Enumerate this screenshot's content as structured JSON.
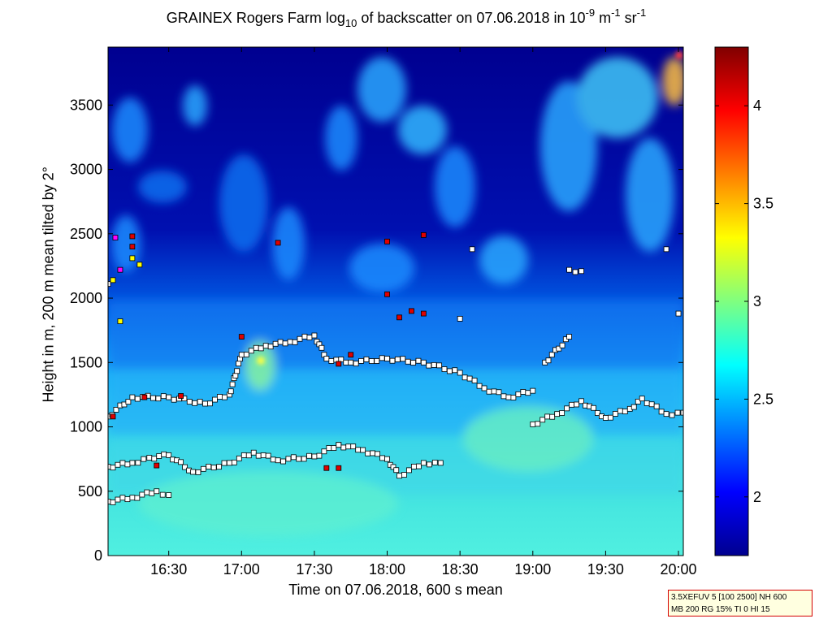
{
  "figure": {
    "title_pre": "GRAINEX Rogers Farm log",
    "title_sub": "10",
    "title_mid": " of backscatter on 07.06.2018 in 10",
    "title_sup1": "-9",
    "title_m": " m",
    "title_sup2": "-1",
    "title_sr": " sr",
    "title_sup3": "-1",
    "info_line1": "3.5XEFUV 5 [100 2500] NH 600",
    "info_line2": "MB 200 RG 15% TI 0 HI 15"
  },
  "chart_data": {
    "type": "heatmap",
    "xlabel": "Time on 07.06.2018, 600 s mean",
    "ylabel": "Height in m, 200 m mean tilted by 2°",
    "xlim": [
      "16:05",
      "20:02"
    ],
    "ylim": [
      0,
      3950
    ],
    "x_ticks": [
      "16:30",
      "17:00",
      "17:30",
      "18:00",
      "18:30",
      "19:00",
      "19:30",
      "20:00"
    ],
    "x_tick_minutes": [
      990,
      1020,
      1050,
      1080,
      1110,
      1140,
      1170,
      1200
    ],
    "y_ticks": [
      0,
      500,
      1000,
      1500,
      2000,
      2500,
      3000,
      3500
    ],
    "colorbar": {
      "colormap": "jet",
      "range": [
        1.7,
        4.3
      ],
      "ticks": [
        2,
        2.5,
        3,
        3.5,
        4
      ]
    },
    "layer_series": [
      {
        "marker": "white-square",
        "points": [
          [
            "16:05",
            420
          ],
          [
            "16:15",
            450
          ],
          [
            "16:25",
            500
          ],
          [
            "16:30",
            470
          ],
          [
            "16:05",
            690
          ],
          [
            "16:15",
            720
          ],
          [
            "16:22",
            760
          ],
          [
            "16:30",
            780
          ],
          [
            "16:40",
            650
          ],
          [
            "16:55",
            720
          ],
          [
            "17:05",
            800
          ],
          [
            "17:15",
            740
          ],
          [
            "17:30",
            770
          ],
          [
            "17:40",
            860
          ],
          [
            "17:50",
            820
          ],
          [
            "18:00",
            750
          ],
          [
            "18:05",
            620
          ],
          [
            "18:15",
            720
          ],
          [
            "18:22",
            720
          ],
          [
            "16:05",
            1080
          ],
          [
            "16:15",
            1230
          ],
          [
            "16:30",
            1230
          ],
          [
            "16:45",
            1180
          ],
          [
            "16:55",
            1250
          ],
          [
            "17:00",
            1560
          ],
          [
            "17:10",
            1630
          ],
          [
            "17:20",
            1660
          ],
          [
            "17:30",
            1710
          ],
          [
            "17:35",
            1530
          ],
          [
            "17:45",
            1500
          ],
          [
            "18:00",
            1530
          ],
          [
            "18:15",
            1500
          ],
          [
            "18:30",
            1420
          ],
          [
            "18:40",
            1300
          ],
          [
            "18:50",
            1230
          ],
          [
            "19:00",
            1280
          ],
          [
            "19:00",
            1020
          ],
          [
            "19:10",
            1100
          ],
          [
            "19:20",
            1200
          ],
          [
            "19:30",
            1070
          ],
          [
            "19:40",
            1140
          ],
          [
            "19:45",
            1220
          ],
          [
            "19:55",
            1100
          ],
          [
            "20:02",
            1110
          ],
          [
            "16:05",
            2110
          ],
          [
            "18:35",
            2380
          ],
          [
            "19:15",
            2220
          ],
          [
            "19:20",
            2210
          ],
          [
            "19:05",
            1500
          ],
          [
            "19:15",
            1700
          ],
          [
            "20:00",
            1880
          ],
          [
            "19:55",
            2380
          ],
          [
            "18:30",
            1840
          ],
          [
            "17:40",
            860
          ]
        ]
      },
      {
        "marker": "red-square",
        "points": [
          [
            "16:07",
            1080
          ],
          [
            "16:20",
            1230
          ],
          [
            "16:35",
            1240
          ],
          [
            "16:15",
            2480
          ],
          [
            "16:15",
            2400
          ],
          [
            "17:15",
            2430
          ],
          [
            "18:00",
            2440
          ],
          [
            "18:15",
            2490
          ],
          [
            "18:00",
            2030
          ],
          [
            "18:05",
            1850
          ],
          [
            "18:10",
            1900
          ],
          [
            "18:15",
            1880
          ],
          [
            "17:45",
            1560
          ],
          [
            "17:40",
            1490
          ],
          [
            "17:00",
            1700
          ],
          [
            "16:25",
            700
          ],
          [
            "17:35",
            680
          ],
          [
            "17:40",
            680
          ]
        ]
      },
      {
        "marker": "yellow-square",
        "points": [
          [
            "16:15",
            2310
          ],
          [
            "16:18",
            2260
          ],
          [
            "16:10",
            1820
          ],
          [
            "16:07",
            2140
          ]
        ]
      },
      {
        "marker": "magenta-square",
        "points": [
          [
            "16:08",
            2470
          ],
          [
            "16:10",
            2220
          ]
        ]
      }
    ]
  }
}
